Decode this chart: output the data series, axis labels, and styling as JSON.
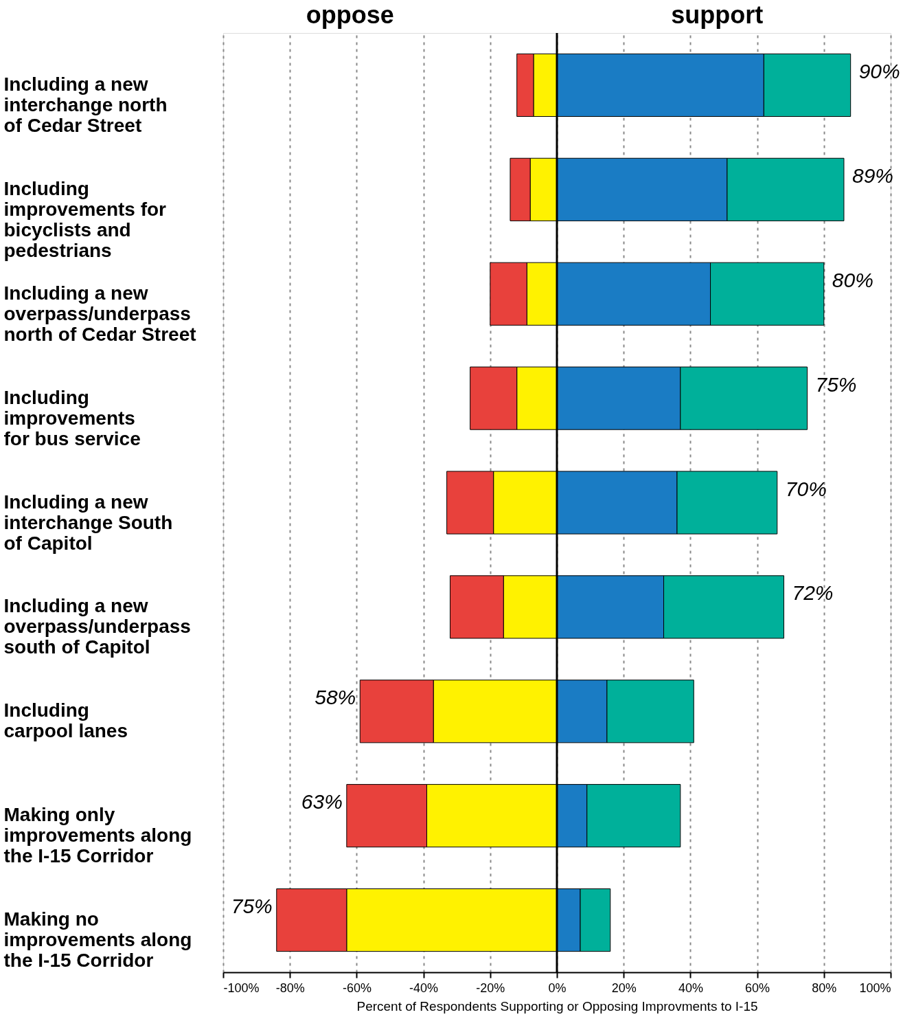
{
  "chart_data": {
    "type": "bar",
    "orientation": "horizontal",
    "stacked": true,
    "categories": [
      "Including a new\ninterchange north\nof Cedar Street",
      "Including\nimprovements for\nbicyclists and\npedestrians",
      "Including a new\noverpass/underpass\nnorth of Cedar Street",
      "Including\nimprovements\nfor bus service",
      "Including a new\ninterchange South\nof Capitol",
      "Including a new\noverpass/underpass\nsouth of Capitol",
      "Including\ncarpool lanes",
      "Making only\nimprovements along\nthe I-15 Corridor",
      "Making no\nimprovements along\nthe I-15 Corridor"
    ],
    "series": [
      {
        "color": "#fff200",
        "values": [
          -7,
          -8,
          -9,
          -12,
          -19,
          -16,
          -37,
          -39,
          -63
        ]
      },
      {
        "color": "#e8413c",
        "values": [
          -5,
          -6,
          -11,
          -14,
          -14,
          -16,
          -22,
          -24,
          -21
        ]
      },
      {
        "color": "#1a7cc4",
        "values": [
          62,
          51,
          46,
          37,
          36,
          32,
          15,
          9,
          7
        ]
      },
      {
        "color": "#00b09a",
        "values": [
          26,
          35,
          34,
          38,
          30,
          36,
          26,
          28,
          9
        ]
      }
    ],
    "xlim": [
      -100,
      100
    ],
    "xticks": [
      {
        "value": -100,
        "label": "-100%"
      },
      {
        "value": -80,
        "label": "-80%"
      },
      {
        "value": -60,
        "label": "-60%"
      },
      {
        "value": -40,
        "label": "-40%"
      },
      {
        "value": -20,
        "label": "-20%"
      },
      {
        "value": 0,
        "label": "0%"
      },
      {
        "value": 20,
        "label": "20%"
      },
      {
        "value": 40,
        "label": "40%"
      },
      {
        "value": 60,
        "label": "60%"
      },
      {
        "value": 80,
        "label": "80%"
      },
      {
        "value": 100,
        "label": "100%"
      }
    ],
    "xlabel": "Percent of Respondents Supporting or Opposing Improvments to I-15",
    "grid": "x",
    "ref_lines": [
      {
        "axis": "x",
        "value": 0,
        "color": "#000000"
      }
    ],
    "annotations": [
      "oppose",
      "support",
      {
        "text": "90%",
        "x": 88,
        "y": "Including a new\ninterchange north\nof Cedar Street"
      },
      {
        "text": "89%",
        "x": 86,
        "y": "Including\nimprovements for\nbicyclists and\npedestrians"
      },
      {
        "text": "80%",
        "x": 80,
        "y": "Including a new\noverpass/underpass\nnorth of Cedar Street"
      },
      {
        "text": "75%",
        "x": 75,
        "y": "Including\nimprovements\nfor bus service"
      },
      {
        "text": "70%",
        "x": 66,
        "y": "Including a new\ninterchange South\nof Capitol"
      },
      {
        "text": "72%",
        "x": 68,
        "y": "Including a new\noverpass/underpass\nsouth of Capitol"
      },
      {
        "text": "58%",
        "x": -59,
        "y": "Including\ncarpool lanes"
      },
      {
        "text": "63%",
        "x": -63,
        "y": "Making only\nimprovements along\nthe I-15 Corridor"
      },
      {
        "text": "75%",
        "x": -84,
        "y": "Making no\nimprovements along\nthe I-15 Corridor"
      }
    ]
  }
}
